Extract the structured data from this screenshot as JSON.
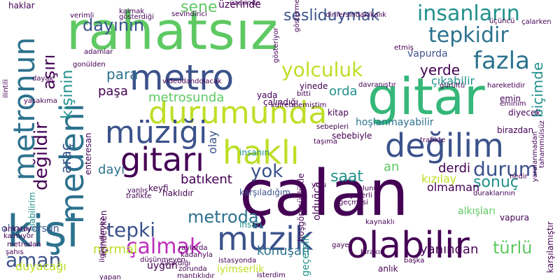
{
  "words": [
    {
      "text": "rahatsız",
      "color": "#5ec962",
      "vertical": false
    },
    {
      "text": "çalan",
      "color": "#440154",
      "vertical": false
    },
    {
      "text": "gitar",
      "color": "#35b779",
      "vertical": false
    },
    {
      "text": "metro",
      "color": "#3b528b",
      "vertical": false
    },
    {
      "text": "durumunda",
      "color": "#bddf26",
      "vertical": false
    },
    {
      "text": "müziği",
      "color": "#3b528b",
      "vertical": false
    },
    {
      "text": "haklı",
      "color": "#bddf26",
      "vertical": false
    },
    {
      "text": "değilim",
      "color": "#3b528b",
      "vertical": false
    },
    {
      "text": "kişi",
      "color": "#2c728e",
      "vertical": false
    },
    {
      "text": "gitarı",
      "color": "#440154",
      "vertical": false
    },
    {
      "text": "olabilir",
      "color": "#440154",
      "vertical": false
    },
    {
      "text": "müzik",
      "color": "#3b528b",
      "vertical": false
    },
    {
      "text": "metroda",
      "color": "#2c728e",
      "vertical": false
    },
    {
      "text": "tepki",
      "color": "#3b528b",
      "vertical": false
    },
    {
      "text": "çalmak",
      "color": "#be2fbe",
      "vertical": false
    },
    {
      "text": "aman",
      "color": "#3b528b",
      "vertical": false
    },
    {
      "text": "yolculuk",
      "color": "#bddf26",
      "vertical": false
    },
    {
      "text": "fazla",
      "color": "#2c728e",
      "vertical": false
    },
    {
      "text": "tepkidir",
      "color": "#2c728e",
      "vertical": false
    },
    {
      "text": "insanların",
      "color": "#21918c",
      "vertical": false
    },
    {
      "text": "sesliduymak",
      "color": "#3b528b",
      "vertical": false
    },
    {
      "text": "sene",
      "color": "#5ec962",
      "vertical": false
    },
    {
      "text": "dayının",
      "color": "#3b528b",
      "vertical": false
    },
    {
      "text": "para",
      "color": "#2c728e",
      "vertical": false
    },
    {
      "text": "metrosunda",
      "color": "#5ec962",
      "vertical": false
    },
    {
      "text": "paşa",
      "color": "#440154",
      "vertical": false
    },
    {
      "text": "orda",
      "color": "#21918c",
      "vertical": false
    },
    {
      "text": "yerde",
      "color": "#440154",
      "vertical": false
    },
    {
      "text": "çıkabilir",
      "color": "#21918c",
      "vertical": false
    },
    {
      "text": "durum",
      "color": "#3b528b",
      "vertical": false
    },
    {
      "text": "sonuç",
      "color": "#21918c",
      "vertical": false
    },
    {
      "text": "yok",
      "color": "#3b528b",
      "vertical": false
    },
    {
      "text": "saat",
      "color": "#21918c",
      "vertical": false
    },
    {
      "text": "an",
      "color": "#5ec962",
      "vertical": false
    },
    {
      "text": "kızılay",
      "color": "#bddf26",
      "vertical": false
    },
    {
      "text": "derdi",
      "color": "#440154",
      "vertical": false
    },
    {
      "text": "batıkent",
      "color": "#440154",
      "vertical": false
    },
    {
      "text": "dayı",
      "color": "#2c728e",
      "vertical": false
    },
    {
      "text": "olmaman",
      "color": "#440154",
      "vertical": false
    },
    {
      "text": "alkışları",
      "color": "#5ec962",
      "vertical": false
    },
    {
      "text": "normal",
      "color": "#bddf26",
      "vertical": false
    },
    {
      "text": "konuşan",
      "color": "#2c728e",
      "vertical": false
    },
    {
      "text": "yanından",
      "color": "#440154",
      "vertical": false
    },
    {
      "text": "türlü",
      "color": "#5ec962",
      "vertical": false
    },
    {
      "text": "duyacağı",
      "color": "#bddf26",
      "vertical": false
    },
    {
      "text": "uygun",
      "color": "#440154",
      "vertical": false
    },
    {
      "text": "metronun",
      "color": "#2c728e",
      "vertical": true
    },
    {
      "text": "medeni",
      "color": "#2c728e",
      "vertical": true
    },
    {
      "text": "değildir",
      "color": "#440154",
      "vertical": true
    },
    {
      "text": "aşırı",
      "color": "#440154",
      "vertical": true
    },
    {
      "text": "kişinin",
      "color": "#21918c",
      "vertical": true
    },
    {
      "text": "araç",
      "color": "#3b528b",
      "vertical": true
    },
    {
      "text": "biçimde",
      "color": "#21918c",
      "vertical": true
    },
    {
      "text": "olay",
      "color": "#3b528b",
      "vertical": true
    },
    {
      "text": "olabilirim",
      "color": "#21918c",
      "vertical": true
    },
    {
      "text": "hoşlanmayabilir",
      "color": "#2c728e",
      "vertical": false
    },
    {
      "text": "vapurda",
      "color": "#3b528b",
      "vertical": false
    },
    {
      "text": "üzerinde",
      "color": "#440154",
      "vertical": false
    },
    {
      "text": "haklıdır",
      "color": "#440154",
      "vertical": false
    },
    {
      "text": "karşıladığım",
      "color": "#3b528b",
      "vertical": false
    },
    {
      "text": "keyfi",
      "color": "#440154",
      "vertical": false
    },
    {
      "text": "insanın",
      "color": "#21918c",
      "vertical": false
    },
    {
      "text": "insan",
      "color": "#21918c",
      "vertical": false
    },
    {
      "text": "sebebiyle",
      "color": "#440154",
      "vertical": false
    },
    {
      "text": "kitap",
      "color": "#440154",
      "vertical": false
    },
    {
      "text": "çalındığı",
      "color": "#440154",
      "vertical": false
    },
    {
      "text": "yinede",
      "color": "#440154",
      "vertical": false
    },
    {
      "text": "yada",
      "color": "#440154",
      "vertical": false
    },
    {
      "text": "bitti",
      "color": "#440154",
      "vertical": false
    },
    {
      "text": "olmuyorsun",
      "color": "#3b528b",
      "vertical": false
    },
    {
      "text": "anlık",
      "color": "#440154",
      "vertical": false
    },
    {
      "text": "vapura",
      "color": "#440154",
      "vertical": false
    },
    {
      "text": "diyecek",
      "color": "#440154",
      "vertical": false
    },
    {
      "text": "birazdan",
      "color": "#440154",
      "vertical": false
    },
    {
      "text": "emin",
      "color": "#440154",
      "vertical": false
    },
    {
      "text": "nedir",
      "color": "#440154",
      "vertical": false
    },
    {
      "text": "iyimserlik",
      "color": "#bddf26",
      "vertical": false
    },
    {
      "text": "dinlersindakikalık",
      "color": "#440154",
      "vertical": false
    },
    {
      "text": "sevindirici",
      "color": "#440154",
      "vertical": false
    },
    {
      "text": "haklar",
      "color": "#440154",
      "vertical": false
    },
    {
      "text": "verimli",
      "color": "#440154",
      "vertical": false
    },
    {
      "text": "kalmak",
      "color": "#440154",
      "vertical": false
    },
    {
      "text": "gösterdiği",
      "color": "#440154",
      "vertical": false
    },
    {
      "text": "adamlar",
      "color": "#440154",
      "vertical": false
    },
    {
      "text": "dolacak",
      "color": "#440154",
      "vertical": false
    },
    {
      "text": "videodan",
      "color": "#440154",
      "vertical": false
    },
    {
      "text": "kadarıyla",
      "color": "#440154",
      "vertical": false
    },
    {
      "text": "istasyonda",
      "color": "#440154",
      "vertical": false
    },
    {
      "text": "isterdim",
      "color": "#440154",
      "vertical": false
    },
    {
      "text": "trafikte",
      "color": "#440154",
      "vertical": false
    },
    {
      "text": "ankaray",
      "color": "#440154",
      "vertical": false
    },
    {
      "text": "kalmıyor",
      "color": "#440154",
      "vertical": false
    },
    {
      "text": "metrodan",
      "color": "#440154",
      "vertical": false
    },
    {
      "text": "şahıs",
      "color": "#440154",
      "vertical": false
    },
    {
      "text": "gayet",
      "color": "#440154",
      "vertical": false
    },
    {
      "text": "bırakın",
      "color": "#440154",
      "vertical": false
    },
    {
      "text": "başka",
      "color": "#440154",
      "vertical": false
    },
    {
      "text": "düşünmeyen",
      "color": "#440154",
      "vertical": false
    },
    {
      "text": "raylarda",
      "color": "#440154",
      "vertical": false
    },
    {
      "text": "zorunda",
      "color": "#440154",
      "vertical": false
    },
    {
      "text": "mantıklıdır",
      "color": "#440154",
      "vertical": false
    },
    {
      "text": "yanlış",
      "color": "#440154",
      "vertical": false
    },
    {
      "text": "sebepleri",
      "color": "#440154",
      "vertical": false
    },
    {
      "text": "trafikte",
      "color": "#440154",
      "vertical": false
    },
    {
      "text": "kaynaklı",
      "color": "#440154",
      "vertical": false
    },
    {
      "text": "yolu",
      "color": "#440154",
      "vertical": false
    },
    {
      "text": "çalarken",
      "color": "#440154",
      "vertical": false
    },
    {
      "text": "yaralanmadan",
      "color": "#440154",
      "vertical": true
    },
    {
      "text": "karşılamıştır",
      "color": "#440154",
      "vertical": true
    },
    {
      "text": "tahammülsüz",
      "color": "#440154",
      "vertical": true
    },
    {
      "text": "geçersin",
      "color": "#21918c",
      "vertical": true
    },
    {
      "text": "hoşgörüsüzlükle",
      "color": "#440154",
      "vertical": true
    },
    {
      "text": "olduğça",
      "color": "#440154",
      "vertical": true
    },
    {
      "text": "gösteriyor",
      "color": "#440154",
      "vertical": true
    },
    {
      "text": "içindeyken",
      "color": "#440154",
      "vertical": true
    },
    {
      "text": "ilgilendirmez",
      "color": "#440154",
      "vertical": true
    },
    {
      "text": "gösterme",
      "color": "#440154",
      "vertical": true
    },
    {
      "text": "gonülden",
      "color": "#440154",
      "vertical": false
    },
    {
      "text": "dayak",
      "color": "#440154",
      "vertical": false
    },
    {
      "text": "yasakıma",
      "color": "#440154",
      "vertical": false
    },
    {
      "text": "taşıma",
      "color": "#440154",
      "vertical": false
    },
    {
      "text": "davranıştır",
      "color": "#440154",
      "vertical": false
    },
    {
      "text": "kufretmemiştim",
      "color": "#440154",
      "vertical": false
    },
    {
      "text": "gürültü",
      "color": "#440154",
      "vertical": false
    },
    {
      "text": "etmiş",
      "color": "#440154",
      "vertical": false
    },
    {
      "text": "üçüncü",
      "color": "#440154",
      "vertical": false
    },
    {
      "text": "ilintili",
      "color": "#440154",
      "vertical": false
    },
    {
      "text": "eminim",
      "color": "#440154",
      "vertical": false
    },
    {
      "text": "hareketidir",
      "color": "#440154",
      "vertical": false
    },
    {
      "text": "çıkardığı",
      "color": "#440154",
      "vertical": false
    },
    {
      "text": "geçmesi",
      "color": "#440154",
      "vertical": false
    },
    {
      "text": "yeterli",
      "color": "#440154",
      "vertical": false
    },
    {
      "text": "olunur",
      "color": "#440154",
      "vertical": false
    },
    {
      "text": "enteresan",
      "color": "#440154",
      "vertical": false
    },
    {
      "text": "duraklarının",
      "color": "#440154",
      "vertical": false
    },
    {
      "text": "yapan",
      "color": "#440154",
      "vertical": false
    },
    {
      "text": "üzerinde",
      "color": "#440154",
      "vertical": false
    }
  ]
}
